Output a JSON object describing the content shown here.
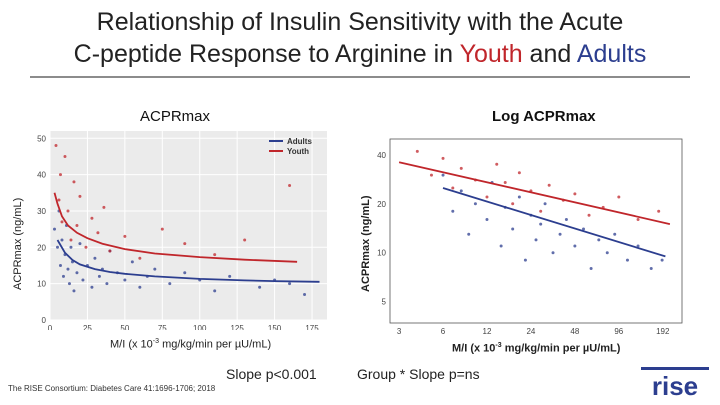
{
  "slide": {
    "title_line1": "Relationship of Insulin Sensitivity with the Acute",
    "title_line2_prefix": "C-peptide Response to Arginine in ",
    "title_youth": "Youth",
    "title_and": " and ",
    "title_adults": "Adults",
    "left_slope_note": "Slope p<0.001",
    "right_slope_note": "Group * Slope p=ns",
    "citation": "The RISE Consortium: Diabetes Care 41:1696-1706; 2018",
    "logo_text": "rise"
  },
  "colors": {
    "adults": "#2c3e8f",
    "youth": "#c0262b",
    "title_rule": "#8c8c8c"
  },
  "chart_data": [
    {
      "type": "scatter",
      "title": "ACPRmax",
      "xlabel_parts": [
        "M/I (x 10",
        "-3",
        " mg/kg/min per µU/mL)"
      ],
      "ylabel": "ACPRmax (ng/mL)",
      "xlim": [
        0,
        185
      ],
      "ylim": [
        0,
        52
      ],
      "xticks": [
        0,
        25,
        50,
        75,
        100,
        125,
        150,
        175
      ],
      "yticks": [
        0,
        10,
        20,
        30,
        40,
        50
      ],
      "legend": {
        "position": "top-right",
        "entries": [
          "Adults",
          "Youth"
        ]
      },
      "series": [
        {
          "name": "Adults",
          "fit": {
            "x": [
              5,
              10,
              15,
              20,
              30,
              40,
              50,
              70,
              100,
              130,
              150,
              180
            ],
            "y": [
              22,
              18.5,
              16.5,
              15.3,
              14,
              13.2,
              12.7,
              12,
              11.3,
              10.9,
              10.7,
              10.5
            ]
          },
          "points": {
            "x": [
              3,
              5,
              6,
              7,
              8,
              9,
              10,
              11,
              12,
              13,
              14,
              15,
              16,
              18,
              20,
              22,
              25,
              28,
              30,
              33,
              35,
              38,
              40,
              45,
              50,
              55,
              60,
              65,
              70,
              80,
              90,
              100,
              110,
              120,
              140,
              150,
              160,
              170
            ],
            "y": [
              25,
              20,
              30,
              15,
              22,
              12,
              18,
              26,
              14,
              10,
              20,
              16,
              8,
              13,
              21,
              11,
              15,
              9,
              17,
              12,
              14,
              10,
              19,
              13,
              11,
              16,
              9,
              12,
              14,
              10,
              13,
              11,
              8,
              12,
              9,
              11,
              10,
              7
            ]
          }
        },
        {
          "name": "Youth",
          "fit": {
            "x": [
              3,
              5,
              8,
              12,
              18,
              25,
              35,
              50,
              70,
              100,
              130,
              165
            ],
            "y": [
              35,
              32,
              28.5,
              26,
              24,
              22.5,
              21,
              19.5,
              18.3,
              17.3,
              16.6,
              16
            ]
          },
          "points": {
            "x": [
              4,
              6,
              7,
              8,
              10,
              12,
              14,
              16,
              18,
              20,
              24,
              28,
              32,
              36,
              40,
              50,
              60,
              75,
              90,
              110,
              130,
              160
            ],
            "y": [
              48,
              33,
              40,
              27,
              45,
              30,
              22,
              38,
              26,
              34,
              20,
              28,
              24,
              31,
              19,
              23,
              17,
              25,
              21,
              18,
              22,
              37
            ]
          }
        }
      ]
    },
    {
      "type": "scatter",
      "title": "Log ACPRmax",
      "xlabel_parts": [
        "M/I (x 10",
        "-3",
        " mg/kg/min per µU/mL)"
      ],
      "ylabel": "ACPRmax (ng/mL)",
      "xscale": "log",
      "yscale": "log",
      "xlim": [
        2.6,
        260
      ],
      "ylim": [
        3.7,
        50
      ],
      "xticks": [
        3,
        6,
        12,
        24,
        48,
        96,
        192
      ],
      "yticks": [
        5,
        10,
        20,
        40
      ],
      "series": [
        {
          "name": "Adults",
          "fit": {
            "x": [
              6,
              200
            ],
            "y": [
              25,
              9.5
            ]
          },
          "points": {
            "x": [
              6,
              7,
              8,
              9,
              10,
              12,
              13,
              15,
              16,
              18,
              20,
              22,
              24,
              26,
              28,
              30,
              34,
              38,
              42,
              48,
              55,
              62,
              70,
              80,
              90,
              110,
              130,
              160,
              190
            ],
            "y": [
              30,
              18,
              24,
              13,
              20,
              16,
              27,
              11,
              19,
              14,
              22,
              9,
              17,
              12,
              15,
              20,
              10,
              13,
              16,
              11,
              14,
              8,
              12,
              10,
              13,
              9,
              11,
              8,
              9
            ]
          }
        },
        {
          "name": "Youth",
          "fit": {
            "x": [
              3,
              215
            ],
            "y": [
              36,
              15
            ]
          },
          "points": {
            "x": [
              4,
              5,
              6,
              7,
              8,
              10,
              12,
              14,
              16,
              18,
              20,
              24,
              28,
              32,
              40,
              48,
              60,
              75,
              96,
              130,
              180
            ],
            "y": [
              42,
              30,
              38,
              25,
              33,
              28,
              22,
              35,
              27,
              20,
              31,
              24,
              18,
              26,
              21,
              23,
              17,
              19,
              22,
              16,
              18
            ]
          }
        }
      ]
    }
  ]
}
